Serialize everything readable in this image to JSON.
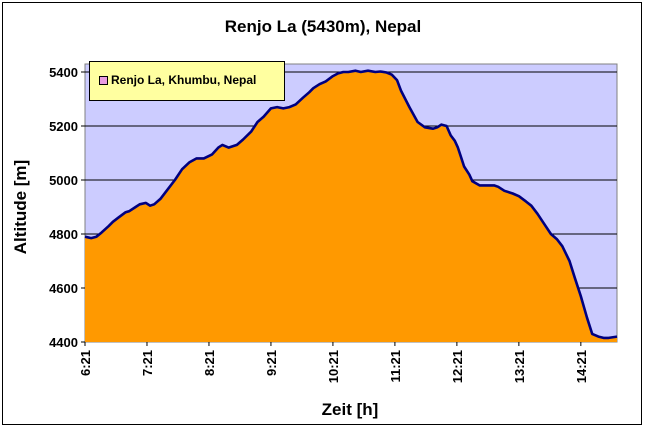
{
  "chart_data": {
    "type": "area",
    "title": "Renjo La (5430m), Nepal",
    "xlabel": "Zeit [h]",
    "ylabel": "Altitude [m]",
    "ylim": [
      4400,
      5400
    ],
    "yticks": [
      4400,
      4600,
      4800,
      5000,
      5200,
      5400
    ],
    "xlim": [
      "6:21",
      "14:56"
    ],
    "xticks": [
      "6:21",
      "7:21",
      "8:21",
      "9:21",
      "10:21",
      "11:21",
      "12:21",
      "13:21",
      "14:21"
    ],
    "grid": true,
    "legend_position": "top-left",
    "series": [
      {
        "name": "Renjo La, Khumbu, Nepal",
        "x": [
          "6:21",
          "6:27",
          "6:32",
          "6:37",
          "6:44",
          "6:48",
          "6:53",
          "7:00",
          "7:04",
          "7:10",
          "7:14",
          "7:20",
          "7:24",
          "7:28",
          "7:34",
          "7:40",
          "7:48",
          "7:55",
          "8:02",
          "8:09",
          "8:12",
          "8:16",
          "8:24",
          "8:30",
          "8:34",
          "8:40",
          "8:44",
          "8:48",
          "8:54",
          "9:02",
          "9:08",
          "9:14",
          "9:21",
          "9:27",
          "9:33",
          "9:39",
          "9:45",
          "9:52",
          "9:58",
          "10:02",
          "10:08",
          "10:14",
          "10:21",
          "10:26",
          "10:31",
          "10:36",
          "10:43",
          "10:48",
          "10:55",
          "11:02",
          "11:07",
          "11:13",
          "11:18",
          "11:23",
          "11:27",
          "11:35",
          "11:43",
          "11:50",
          "11:58",
          "12:02",
          "12:06",
          "12:11",
          "12:15",
          "12:19",
          "12:22",
          "12:25",
          "12:28",
          "12:33",
          "12:36",
          "12:43",
          "12:50",
          "12:57",
          "13:01",
          "13:07",
          "13:15",
          "13:21",
          "13:28",
          "13:33",
          "13:39",
          "13:45",
          "13:52",
          "13:58",
          "14:03",
          "14:10",
          "14:15",
          "14:21",
          "14:27",
          "14:32",
          "14:38",
          "14:43",
          "14:48",
          "14:56"
        ],
        "values": [
          4790,
          4785,
          4790,
          4805,
          4830,
          4845,
          4860,
          4880,
          4885,
          4900,
          4910,
          4915,
          4905,
          4910,
          4930,
          4960,
          5000,
          5040,
          5065,
          5080,
          5080,
          5080,
          5095,
          5120,
          5130,
          5120,
          5125,
          5130,
          5150,
          5180,
          5215,
          5235,
          5265,
          5270,
          5265,
          5270,
          5280,
          5305,
          5325,
          5340,
          5355,
          5365,
          5385,
          5395,
          5400,
          5400,
          5405,
          5400,
          5405,
          5400,
          5402,
          5398,
          5390,
          5370,
          5330,
          5270,
          5215,
          5195,
          5190,
          5195,
          5205,
          5200,
          5165,
          5145,
          5120,
          5085,
          5050,
          5020,
          4995,
          4980,
          4980,
          4980,
          4975,
          4960,
          4950,
          4940,
          4920,
          4905,
          4875,
          4840,
          4800,
          4780,
          4755,
          4700,
          4640,
          4570,
          4490,
          4430,
          4420,
          4415,
          4415,
          4420
        ]
      }
    ]
  }
}
